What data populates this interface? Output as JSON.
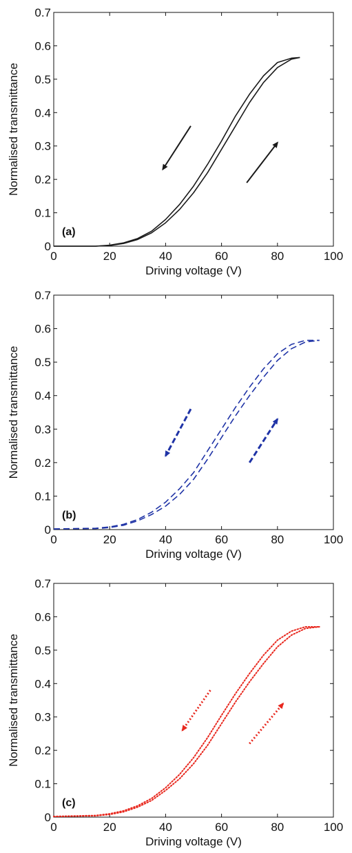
{
  "chart_data": [
    {
      "type": "line",
      "panel_label": "(a)",
      "xlabel": "Driving voltage (V)",
      "ylabel": "Normalised transmittance",
      "xlim": [
        0,
        100
      ],
      "ylim": [
        0,
        0.7
      ],
      "xticks": [
        "0",
        "20",
        "40",
        "60",
        "80",
        "100"
      ],
      "yticks": [
        "0",
        "0.1",
        "0.2",
        "0.3",
        "0.4",
        "0.5",
        "0.6",
        "0.7"
      ],
      "grid": false,
      "line_style": "solid",
      "color": "#1a1a1a",
      "series": [
        {
          "x": [
            0,
            15,
            20,
            25,
            30,
            35,
            40,
            45,
            50,
            55,
            60,
            65,
            70,
            75,
            80,
            85,
            88
          ],
          "y": [
            0,
            0,
            0.002,
            0.008,
            0.02,
            0.04,
            0.07,
            0.11,
            0.16,
            0.22,
            0.29,
            0.36,
            0.43,
            0.49,
            0.535,
            0.56,
            0.565
          ]
        },
        {
          "x": [
            0,
            15,
            20,
            25,
            30,
            35,
            40,
            45,
            50,
            55,
            60,
            65,
            70,
            75,
            80,
            85,
            88
          ],
          "y": [
            0,
            0,
            0.003,
            0.01,
            0.023,
            0.045,
            0.08,
            0.125,
            0.18,
            0.245,
            0.315,
            0.39,
            0.455,
            0.51,
            0.55,
            0.563,
            0.565
          ]
        }
      ],
      "arrows": [
        {
          "from": [
            49,
            0.36
          ],
          "to": [
            39,
            0.23
          ]
        },
        {
          "from": [
            69,
            0.19
          ],
          "to": [
            80,
            0.31
          ]
        }
      ]
    },
    {
      "type": "line",
      "panel_label": "(b)",
      "xlabel": "Driving voltage (V)",
      "ylabel": "Normalised transmittance",
      "xlim": [
        0,
        100
      ],
      "ylim": [
        0,
        0.7
      ],
      "xticks": [
        "0",
        "20",
        "40",
        "60",
        "80",
        "100"
      ],
      "yticks": [
        "0",
        "0.1",
        "0.2",
        "0.3",
        "0.4",
        "0.5",
        "0.6",
        "0.7"
      ],
      "grid": false,
      "line_style": "dashed",
      "color": "#1f33a6",
      "series": [
        {
          "x": [
            0,
            15,
            20,
            25,
            30,
            35,
            40,
            45,
            50,
            55,
            60,
            65,
            70,
            75,
            80,
            85,
            90,
            95
          ],
          "y": [
            0.002,
            0.003,
            0.006,
            0.013,
            0.026,
            0.045,
            0.07,
            0.105,
            0.15,
            0.21,
            0.275,
            0.34,
            0.4,
            0.455,
            0.505,
            0.54,
            0.56,
            0.565
          ]
        },
        {
          "x": [
            0,
            15,
            20,
            25,
            30,
            35,
            40,
            45,
            50,
            55,
            60,
            65,
            70,
            75,
            80,
            85,
            90,
            95
          ],
          "y": [
            0.002,
            0.004,
            0.008,
            0.016,
            0.03,
            0.052,
            0.082,
            0.122,
            0.17,
            0.235,
            0.3,
            0.365,
            0.425,
            0.48,
            0.525,
            0.553,
            0.565,
            0.565
          ]
        }
      ],
      "arrows": [
        {
          "from": [
            49,
            0.36
          ],
          "to": [
            40,
            0.22
          ]
        },
        {
          "from": [
            70,
            0.2
          ],
          "to": [
            80,
            0.33
          ]
        }
      ]
    },
    {
      "type": "line",
      "panel_label": "(c)",
      "xlabel": "Driving voltage (V)",
      "ylabel": "Normalised transmittance",
      "xlim": [
        0,
        100
      ],
      "ylim": [
        0,
        0.7
      ],
      "xticks": [
        "0",
        "20",
        "40",
        "60",
        "80",
        "100"
      ],
      "yticks": [
        "0",
        "0.1",
        "0.2",
        "0.3",
        "0.4",
        "0.5",
        "0.6",
        "0.7"
      ],
      "grid": false,
      "line_style": "dotted",
      "color": "#e8281e",
      "series": [
        {
          "x": [
            0,
            15,
            20,
            25,
            30,
            35,
            40,
            45,
            50,
            55,
            60,
            65,
            70,
            75,
            80,
            85,
            90,
            95
          ],
          "y": [
            0.002,
            0.004,
            0.008,
            0.016,
            0.03,
            0.05,
            0.08,
            0.115,
            0.16,
            0.215,
            0.28,
            0.345,
            0.405,
            0.46,
            0.51,
            0.545,
            0.565,
            0.57
          ]
        },
        {
          "x": [
            0,
            15,
            20,
            25,
            30,
            35,
            40,
            45,
            50,
            55,
            60,
            65,
            70,
            75,
            80,
            85,
            90,
            95
          ],
          "y": [
            0.002,
            0.005,
            0.01,
            0.019,
            0.034,
            0.056,
            0.088,
            0.128,
            0.178,
            0.238,
            0.305,
            0.37,
            0.43,
            0.485,
            0.53,
            0.557,
            0.57,
            0.57
          ]
        }
      ],
      "arrows": [
        {
          "from": [
            56,
            0.38
          ],
          "to": [
            46,
            0.26
          ]
        },
        {
          "from": [
            70,
            0.22
          ],
          "to": [
            82,
            0.34
          ]
        }
      ]
    }
  ]
}
